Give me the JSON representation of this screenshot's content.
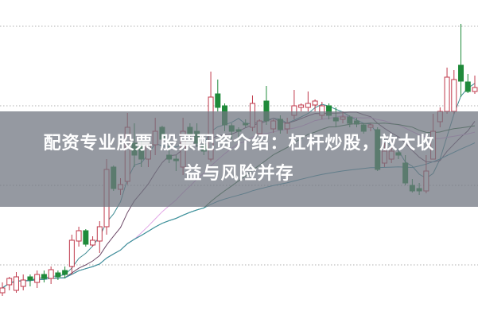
{
  "article": {
    "title_line1": "配资专业股票 股票配资介绍：杠杆炒股，放大收",
    "title_line2": "益与风险并存"
  },
  "chart_data": {
    "type": "candlestick",
    "ylim": [
      0,
      100
    ],
    "grid": true,
    "colors": {
      "up": "#c0394b",
      "down": "#1f8a3a",
      "grid": "#b0b0b0"
    },
    "moving_averages": [
      {
        "period": 5,
        "color": "#3f8c93"
      },
      {
        "period": 10,
        "color": "#6e4a68"
      },
      {
        "period": 20,
        "color": "#e2a6e6"
      },
      {
        "period": 30,
        "color": "#2e6b3b"
      },
      {
        "period": 60,
        "color": "#3b93a6"
      }
    ],
    "candles_ohlc": [
      [
        8,
        11.25,
        7,
        9.5
      ],
      [
        10.5,
        13,
        8.75,
        12.5
      ],
      [
        8.75,
        14.5,
        8,
        13
      ],
      [
        10,
        13.75,
        8.75,
        12
      ],
      [
        13,
        13.75,
        10,
        12
      ],
      [
        11.25,
        15,
        9.5,
        13.75
      ],
      [
        13.75,
        15,
        11.25,
        12.5
      ],
      [
        12.5,
        16.25,
        10.75,
        15.25
      ],
      [
        14.25,
        15,
        12,
        13
      ],
      [
        15,
        16.25,
        12.5,
        13.75
      ],
      [
        16.25,
        26.25,
        13.75,
        24.5
      ],
      [
        24.25,
        28.75,
        22.5,
        27.5
      ],
      [
        27.5,
        28,
        22.5,
        23.25
      ],
      [
        23,
        25.75,
        22.5,
        24.5
      ],
      [
        24.25,
        30.5,
        20.5,
        28.75
      ],
      [
        28.75,
        50,
        26.25,
        46.75
      ],
      [
        47.5,
        48,
        40,
        40.75
      ],
      [
        40.5,
        44,
        38.75,
        42
      ],
      [
        43,
        64.5,
        42,
        60
      ],
      [
        55,
        61.25,
        47.5,
        51.25
      ],
      [
        54.5,
        55.5,
        47.5,
        50
      ],
      [
        50,
        55,
        47.5,
        54.5
      ],
      [
        54.5,
        63,
        51.25,
        58.75
      ],
      [
        60,
        60.5,
        53.75,
        56.25
      ],
      [
        51.25,
        56.25,
        48.75,
        50
      ],
      [
        50,
        51.25,
        46.25,
        49.5
      ],
      [
        47.5,
        63,
        45,
        58.75
      ],
      [
        60,
        61.25,
        56.25,
        57.5
      ],
      [
        58.75,
        61.25,
        53.75,
        55
      ],
      [
        54.5,
        55,
        51.25,
        52.5
      ],
      [
        50,
        77.5,
        49.25,
        69.5
      ],
      [
        70.5,
        75,
        65,
        66.25
      ],
      [
        66.75,
        67.5,
        58.75,
        60.75
      ],
      [
        60.5,
        61.25,
        56.25,
        58.75
      ],
      [
        59.25,
        60,
        56.25,
        58.75
      ],
      [
        61.25,
        62.5,
        60,
        60.75
      ],
      [
        60,
        70,
        58.75,
        67.5
      ],
      [
        58,
        62.5,
        57.5,
        62
      ],
      [
        68.25,
        73,
        60.75,
        62
      ],
      [
        59.5,
        62.5,
        58.25,
        62
      ],
      [
        62.5,
        63.75,
        58,
        59.25
      ],
      [
        59.5,
        63,
        58,
        61.25
      ],
      [
        63.75,
        71.75,
        62.5,
        66.75
      ],
      [
        66.25,
        67.5,
        65,
        67
      ],
      [
        66.25,
        71.25,
        65,
        67.5
      ],
      [
        67,
        68.75,
        65,
        68.25
      ],
      [
        63.75,
        68,
        62.5,
        66.75
      ],
      [
        66.75,
        67.5,
        62.5,
        63.75
      ],
      [
        63,
        66.25,
        60,
        62
      ],
      [
        62.5,
        65,
        61.25,
        63.25
      ],
      [
        63.25,
        63.75,
        60,
        61.25
      ],
      [
        62,
        63,
        60,
        61
      ],
      [
        60.75,
        61.25,
        58,
        58.75
      ],
      [
        60,
        61.25,
        58.75,
        60.75
      ],
      [
        59.25,
        60,
        46.25,
        46.75
      ],
      [
        48.75,
        55,
        47.5,
        52.5
      ],
      [
        50,
        53.75,
        48.75,
        52.5
      ],
      [
        52,
        52.5,
        50,
        51.25
      ],
      [
        48.75,
        51.25,
        41.75,
        42.5
      ],
      [
        41.75,
        43.75,
        39.5,
        40
      ],
      [
        40.75,
        42.5,
        38.75,
        40
      ],
      [
        40,
        51.25,
        39.25,
        46.25
      ],
      [
        50,
        64.25,
        50,
        58.75
      ],
      [
        61.75,
        66.25,
        60,
        65
      ],
      [
        65,
        78.75,
        64.25,
        75.75
      ],
      [
        65,
        78,
        64.25,
        75
      ],
      [
        79.5,
        92.5,
        69.5,
        74.5
      ],
      [
        74.25,
        76.75,
        70.75,
        71.25
      ],
      [
        71.25,
        76.25,
        70.5,
        72.5
      ]
    ]
  }
}
